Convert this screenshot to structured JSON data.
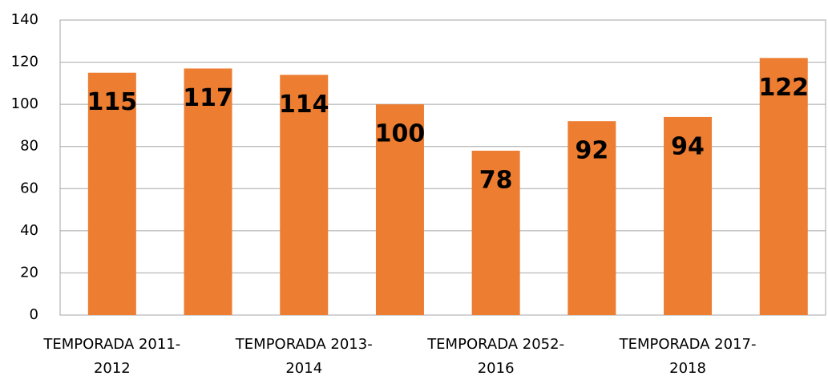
{
  "chart_data": {
    "type": "bar",
    "categories": [
      "TEMPORADA 2011-2012",
      null,
      "TEMPORADA 2013-2014",
      null,
      "TEMPORADA 2052-2016",
      null,
      "TEMPORADA 2017-2018",
      null
    ],
    "values": [
      115,
      117,
      114,
      100,
      78,
      92,
      94,
      122
    ],
    "color": "#ed7d31",
    "ylim": [
      0,
      140
    ],
    "yticks": [
      0,
      20,
      40,
      60,
      80,
      100,
      120,
      140
    ],
    "grid": true
  }
}
